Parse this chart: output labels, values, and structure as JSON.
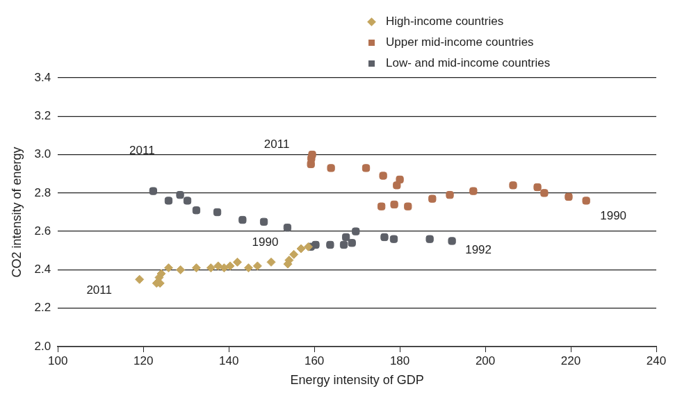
{
  "chart_data": {
    "type": "scatter",
    "xlabel": "Energy intensity of GDP",
    "ylabel": "CO2 intensity of energy",
    "xlim": [
      100,
      240
    ],
    "xticks": [
      100,
      120,
      140,
      160,
      180,
      200,
      220,
      240
    ],
    "ylim": [
      2.0,
      3.4
    ],
    "yticks": [
      {
        "value": 2,
        "label": "2.0"
      },
      2.2,
      2.4,
      2.6,
      2.8,
      {
        "value": 3,
        "label": "3.0"
      },
      3.2,
      3.4
    ],
    "grid": "y",
    "legend": "top right",
    "series": [
      {
        "name": "High-income countries",
        "color": "#c4a55e",
        "marker": "diamond",
        "x": [
          158.6,
          156.9,
          155.2,
          154.1,
          153.8,
          149.9,
          146.7,
          144.6,
          142.0,
          140.3,
          138.9,
          137.5,
          135.8,
          132.4,
          128.7,
          125.9,
          124.2,
          123.7,
          123.1,
          123.9,
          119.1
        ],
        "values": [
          2.52,
          2.51,
          2.48,
          2.45,
          2.43,
          2.44,
          2.42,
          2.41,
          2.44,
          2.42,
          2.41,
          2.42,
          2.41,
          2.41,
          2.4,
          2.41,
          2.38,
          2.36,
          2.33,
          2.33,
          2.35
        ]
      },
      {
        "name": "Upper mid-income countries",
        "color": "#b3704f",
        "marker": "square",
        "x": [
          223.6,
          219.5,
          213.8,
          212.2,
          206.5,
          197.2,
          191.7,
          187.6,
          181.9,
          178.7,
          175.7,
          179.3,
          180.0,
          176.1,
          172.1,
          163.9,
          159.2,
          159.3,
          159.5
        ],
        "values": [
          2.76,
          2.78,
          2.8,
          2.83,
          2.84,
          2.81,
          2.79,
          2.77,
          2.73,
          2.74,
          2.73,
          2.84,
          2.87,
          2.89,
          2.93,
          2.93,
          2.95,
          2.98,
          3.0
        ]
      },
      {
        "name": "Low- and mid-income countries",
        "color": "#5d6068",
        "marker": "square",
        "x": [
          192.2,
          187.0,
          178.6,
          176.4,
          169.7,
          168.8,
          167.4,
          166.9,
          163.7,
          160.3,
          159.2,
          153.7,
          148.2,
          143.2,
          137.3,
          132.4,
          130.3,
          128.6,
          125.9,
          122.3
        ],
        "values": [
          2.55,
          2.56,
          2.56,
          2.57,
          2.6,
          2.54,
          2.57,
          2.53,
          2.53,
          2.53,
          2.52,
          2.62,
          2.65,
          2.66,
          2.7,
          2.71,
          2.76,
          2.79,
          2.76,
          2.81
        ]
      }
    ],
    "annotations": [
      {
        "text": "2011",
        "x": 159.5,
        "y": 3.0
      },
      {
        "text": "2011",
        "x": 122.3,
        "y": 2.81
      },
      {
        "text": "1990",
        "x": 158.6,
        "y": 2.52
      },
      {
        "text": "1992",
        "x": 192.2,
        "y": 2.55
      },
      {
        "text": "1990",
        "x": 223.6,
        "y": 2.76
      },
      {
        "text": "2011",
        "x": 119.1,
        "y": 2.35
      }
    ]
  }
}
